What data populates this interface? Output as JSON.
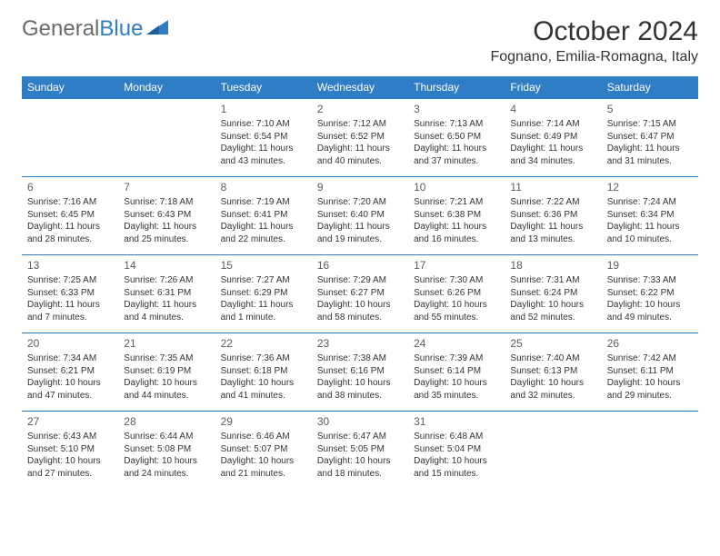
{
  "logo": {
    "text_general": "General",
    "text_blue": "Blue"
  },
  "title": "October 2024",
  "location": "Fognano, Emilia-Romagna, Italy",
  "colors": {
    "header_bg": "#2f7dc4",
    "header_fg": "#ffffff",
    "rule": "#2f7dc4",
    "text": "#333333",
    "logo_gray": "#6a6a6a"
  },
  "day_headers": [
    "Sunday",
    "Monday",
    "Tuesday",
    "Wednesday",
    "Thursday",
    "Friday",
    "Saturday"
  ],
  "weeks": [
    [
      null,
      null,
      {
        "n": "1",
        "sr": "Sunrise: 7:10 AM",
        "ss": "Sunset: 6:54 PM",
        "dl": "Daylight: 11 hours and 43 minutes."
      },
      {
        "n": "2",
        "sr": "Sunrise: 7:12 AM",
        "ss": "Sunset: 6:52 PM",
        "dl": "Daylight: 11 hours and 40 minutes."
      },
      {
        "n": "3",
        "sr": "Sunrise: 7:13 AM",
        "ss": "Sunset: 6:50 PM",
        "dl": "Daylight: 11 hours and 37 minutes."
      },
      {
        "n": "4",
        "sr": "Sunrise: 7:14 AM",
        "ss": "Sunset: 6:49 PM",
        "dl": "Daylight: 11 hours and 34 minutes."
      },
      {
        "n": "5",
        "sr": "Sunrise: 7:15 AM",
        "ss": "Sunset: 6:47 PM",
        "dl": "Daylight: 11 hours and 31 minutes."
      }
    ],
    [
      {
        "n": "6",
        "sr": "Sunrise: 7:16 AM",
        "ss": "Sunset: 6:45 PM",
        "dl": "Daylight: 11 hours and 28 minutes."
      },
      {
        "n": "7",
        "sr": "Sunrise: 7:18 AM",
        "ss": "Sunset: 6:43 PM",
        "dl": "Daylight: 11 hours and 25 minutes."
      },
      {
        "n": "8",
        "sr": "Sunrise: 7:19 AM",
        "ss": "Sunset: 6:41 PM",
        "dl": "Daylight: 11 hours and 22 minutes."
      },
      {
        "n": "9",
        "sr": "Sunrise: 7:20 AM",
        "ss": "Sunset: 6:40 PM",
        "dl": "Daylight: 11 hours and 19 minutes."
      },
      {
        "n": "10",
        "sr": "Sunrise: 7:21 AM",
        "ss": "Sunset: 6:38 PM",
        "dl": "Daylight: 11 hours and 16 minutes."
      },
      {
        "n": "11",
        "sr": "Sunrise: 7:22 AM",
        "ss": "Sunset: 6:36 PM",
        "dl": "Daylight: 11 hours and 13 minutes."
      },
      {
        "n": "12",
        "sr": "Sunrise: 7:24 AM",
        "ss": "Sunset: 6:34 PM",
        "dl": "Daylight: 11 hours and 10 minutes."
      }
    ],
    [
      {
        "n": "13",
        "sr": "Sunrise: 7:25 AM",
        "ss": "Sunset: 6:33 PM",
        "dl": "Daylight: 11 hours and 7 minutes."
      },
      {
        "n": "14",
        "sr": "Sunrise: 7:26 AM",
        "ss": "Sunset: 6:31 PM",
        "dl": "Daylight: 11 hours and 4 minutes."
      },
      {
        "n": "15",
        "sr": "Sunrise: 7:27 AM",
        "ss": "Sunset: 6:29 PM",
        "dl": "Daylight: 11 hours and 1 minute."
      },
      {
        "n": "16",
        "sr": "Sunrise: 7:29 AM",
        "ss": "Sunset: 6:27 PM",
        "dl": "Daylight: 10 hours and 58 minutes."
      },
      {
        "n": "17",
        "sr": "Sunrise: 7:30 AM",
        "ss": "Sunset: 6:26 PM",
        "dl": "Daylight: 10 hours and 55 minutes."
      },
      {
        "n": "18",
        "sr": "Sunrise: 7:31 AM",
        "ss": "Sunset: 6:24 PM",
        "dl": "Daylight: 10 hours and 52 minutes."
      },
      {
        "n": "19",
        "sr": "Sunrise: 7:33 AM",
        "ss": "Sunset: 6:22 PM",
        "dl": "Daylight: 10 hours and 49 minutes."
      }
    ],
    [
      {
        "n": "20",
        "sr": "Sunrise: 7:34 AM",
        "ss": "Sunset: 6:21 PM",
        "dl": "Daylight: 10 hours and 47 minutes."
      },
      {
        "n": "21",
        "sr": "Sunrise: 7:35 AM",
        "ss": "Sunset: 6:19 PM",
        "dl": "Daylight: 10 hours and 44 minutes."
      },
      {
        "n": "22",
        "sr": "Sunrise: 7:36 AM",
        "ss": "Sunset: 6:18 PM",
        "dl": "Daylight: 10 hours and 41 minutes."
      },
      {
        "n": "23",
        "sr": "Sunrise: 7:38 AM",
        "ss": "Sunset: 6:16 PM",
        "dl": "Daylight: 10 hours and 38 minutes."
      },
      {
        "n": "24",
        "sr": "Sunrise: 7:39 AM",
        "ss": "Sunset: 6:14 PM",
        "dl": "Daylight: 10 hours and 35 minutes."
      },
      {
        "n": "25",
        "sr": "Sunrise: 7:40 AM",
        "ss": "Sunset: 6:13 PM",
        "dl": "Daylight: 10 hours and 32 minutes."
      },
      {
        "n": "26",
        "sr": "Sunrise: 7:42 AM",
        "ss": "Sunset: 6:11 PM",
        "dl": "Daylight: 10 hours and 29 minutes."
      }
    ],
    [
      {
        "n": "27",
        "sr": "Sunrise: 6:43 AM",
        "ss": "Sunset: 5:10 PM",
        "dl": "Daylight: 10 hours and 27 minutes."
      },
      {
        "n": "28",
        "sr": "Sunrise: 6:44 AM",
        "ss": "Sunset: 5:08 PM",
        "dl": "Daylight: 10 hours and 24 minutes."
      },
      {
        "n": "29",
        "sr": "Sunrise: 6:46 AM",
        "ss": "Sunset: 5:07 PM",
        "dl": "Daylight: 10 hours and 21 minutes."
      },
      {
        "n": "30",
        "sr": "Sunrise: 6:47 AM",
        "ss": "Sunset: 5:05 PM",
        "dl": "Daylight: 10 hours and 18 minutes."
      },
      {
        "n": "31",
        "sr": "Sunrise: 6:48 AM",
        "ss": "Sunset: 5:04 PM",
        "dl": "Daylight: 10 hours and 15 minutes."
      },
      null,
      null
    ]
  ]
}
